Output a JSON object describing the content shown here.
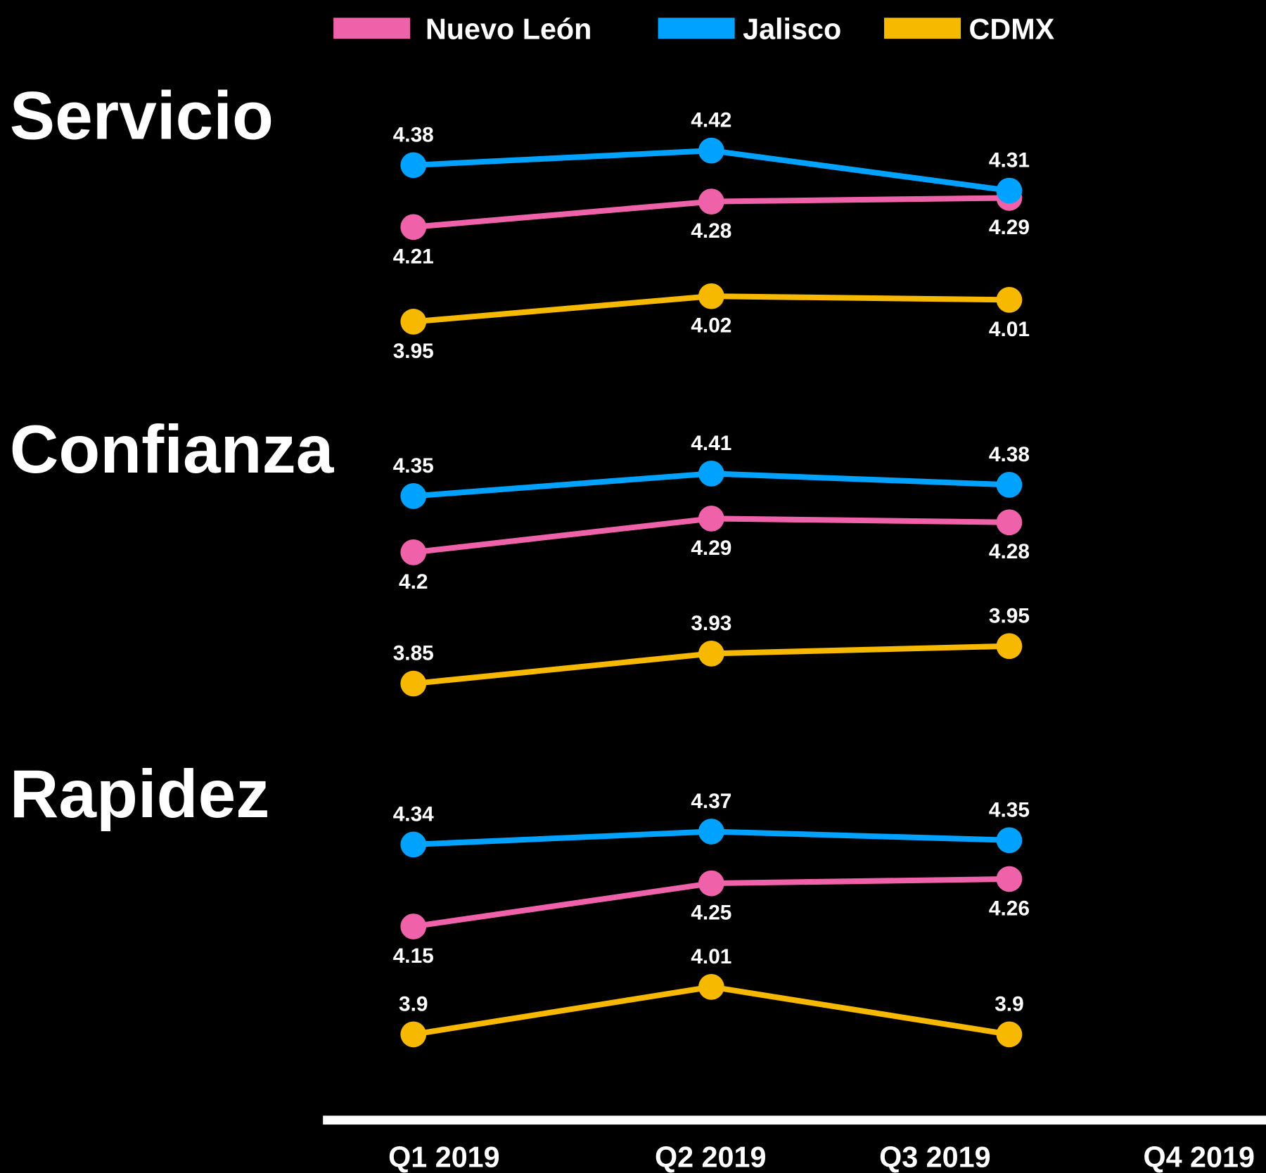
{
  "chart_data": [
    {
      "type": "line",
      "title": "Servicio",
      "ylim": [
        3.9,
        4.45
      ],
      "series": [
        {
          "name": "Nuevo León",
          "color": "#ef62aa",
          "label_position": "below",
          "values": [
            4.21,
            4.28,
            4.29,
            null
          ]
        },
        {
          "name": "Jalisco",
          "color": "#00a2ff",
          "label_position": "above",
          "values": [
            4.38,
            4.42,
            4.31,
            null
          ]
        },
        {
          "name": "CDMX",
          "color": "#f7b800",
          "label_position": "below",
          "values": [
            3.95,
            4.02,
            4.01,
            null
          ]
        }
      ]
    },
    {
      "type": "line",
      "title": "Confianza",
      "ylim": [
        3.8,
        4.45
      ],
      "series": [
        {
          "name": "Nuevo León",
          "color": "#ef62aa",
          "label_position": "below",
          "values": [
            4.2,
            4.29,
            4.28,
            null
          ]
        },
        {
          "name": "Jalisco",
          "color": "#00a2ff",
          "label_position": "above",
          "values": [
            4.35,
            4.41,
            4.38,
            null
          ]
        },
        {
          "name": "CDMX",
          "color": "#f7b800",
          "label_position": "above",
          "values": [
            3.85,
            3.93,
            3.95,
            null
          ]
        }
      ]
    },
    {
      "type": "line",
      "title": "Rapidez",
      "ylim": [
        3.85,
        4.4
      ],
      "categories": [
        "Q1 2019",
        "Q2 2019",
        "Q3 2019",
        "Q4 2019"
      ],
      "series": [
        {
          "name": "Nuevo León",
          "color": "#ef62aa",
          "label_position": "below",
          "values": [
            4.15,
            4.25,
            4.26,
            null
          ]
        },
        {
          "name": "Jalisco",
          "color": "#00a2ff",
          "label_position": "above",
          "values": [
            4.34,
            4.37,
            4.35,
            null
          ]
        },
        {
          "name": "CDMX",
          "color": "#f7b800",
          "label_position": "above",
          "values": [
            3.9,
            4.01,
            3.9,
            null
          ]
        }
      ]
    }
  ]
}
